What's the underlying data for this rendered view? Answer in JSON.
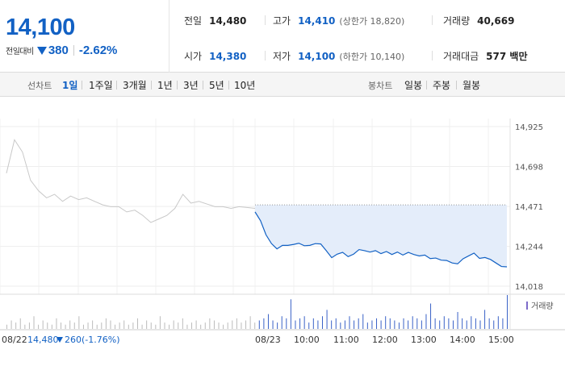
{
  "summary": {
    "current_price": "14,100",
    "change_label": "전일대비",
    "change_value": "380",
    "change_pct": "-2.62%",
    "stats": {
      "prev_close": {
        "label": "전일",
        "value": "14,480"
      },
      "high": {
        "label": "고가",
        "value": "14,410",
        "sub": "(상한가 18,820)"
      },
      "volume": {
        "label": "거래량",
        "value": "40,669"
      },
      "open": {
        "label": "시가",
        "value": "14,380"
      },
      "low": {
        "label": "저가",
        "value": "14,100",
        "sub": "(하한가 10,140)"
      },
      "trade_value": {
        "label": "거래대금",
        "value": "577 백만"
      }
    }
  },
  "toolbar": {
    "line_label": "선차트",
    "line_periods": [
      "1일",
      "1주일",
      "3개월",
      "1년",
      "3년",
      "5년",
      "10년"
    ],
    "active_period": "1일",
    "candle_label": "봉차트",
    "candle_periods": [
      "일봉",
      "주봉",
      "월봉"
    ]
  },
  "chart_data": {
    "type": "line",
    "y_ticks": [
      "14,925",
      "14,698",
      "14,471",
      "14,244",
      "14,018"
    ],
    "ylim": [
      14018,
      14925
    ],
    "legend_volume": "거래량",
    "x_ticks": [
      "08/23",
      "10:00",
      "11:00",
      "12:00",
      "13:00",
      "14:00",
      "15:00"
    ],
    "prev_day_note": {
      "date": "08/22",
      "price": "14,480",
      "change": "260",
      "pct": "(-1.76%)"
    },
    "prev_close_line": 14480,
    "series": [
      {
        "session": "previous",
        "values": [
          14660,
          14850,
          14780,
          14620,
          14560,
          14520,
          14540,
          14500,
          14530,
          14510,
          14520,
          14500,
          14480,
          14470,
          14470,
          14440,
          14450,
          14420,
          14380,
          14400,
          14420,
          14460,
          14540,
          14490,
          14500,
          14485,
          14470,
          14470,
          14460,
          14470,
          14465,
          14460
        ]
      },
      {
        "session": "current",
        "values": [
          14440,
          14390,
          14310,
          14260,
          14230,
          14250,
          14250,
          14255,
          14262,
          14248,
          14250,
          14260,
          14258,
          14220,
          14180,
          14200,
          14210,
          14186,
          14200,
          14226,
          14220,
          14212,
          14220,
          14203,
          14215,
          14198,
          14212,
          14195,
          14210,
          14198,
          14190,
          14195,
          14175,
          14178,
          14166,
          14164,
          14150,
          14145,
          14174,
          14190,
          14206,
          14176,
          14181,
          14170,
          14150,
          14130,
          14128
        ]
      }
    ],
    "volume": [
      2,
      4,
      3,
      5,
      2,
      3,
      6,
      2,
      4,
      3,
      2,
      5,
      3,
      2,
      4,
      3,
      6,
      2,
      3,
      4,
      2,
      3,
      5,
      4,
      2,
      3,
      4,
      2,
      3,
      5,
      2,
      4,
      3,
      2,
      6,
      3,
      2,
      4,
      3,
      5,
      2,
      3,
      4,
      2,
      3,
      5,
      4,
      3,
      2,
      3,
      4,
      5,
      3,
      4,
      6,
      3,
      4,
      5,
      7,
      4,
      3,
      6,
      5,
      14,
      4,
      5,
      6,
      3,
      5,
      4,
      6,
      9,
      4,
      5,
      3,
      4,
      6,
      4,
      5,
      7,
      3,
      4,
      5,
      4,
      6,
      5,
      4,
      3,
      5,
      4,
      6,
      5,
      4,
      7,
      12,
      5,
      4,
      6,
      5,
      4,
      8,
      5,
      4,
      6,
      5,
      4,
      9,
      5,
      4,
      6,
      5,
      16
    ]
  },
  "colors": {
    "down": "#1261c4",
    "prev_line": "#c8c8c8",
    "fill": "#e4edfa",
    "volume": "#3a62c7",
    "volume_prev": "#bbbbbb"
  }
}
